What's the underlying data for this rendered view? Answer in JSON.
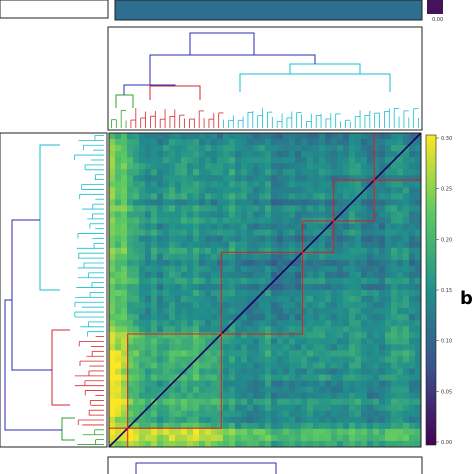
{
  "chart_data": {
    "type": "heatmap",
    "title": "",
    "xlabel": "",
    "ylabel": "",
    "panel_label": "b",
    "colormap": "viridis",
    "colorbar": {
      "min": 0.0,
      "max": 0.3,
      "ticks": [
        "0.30",
        "0.25",
        "0.20",
        "0.15",
        "0.10",
        "0.05",
        "0.00"
      ],
      "colors": [
        "#440154",
        "#3b528b",
        "#21908c",
        "#5dc963",
        "#fde725"
      ]
    },
    "top_colorbar_tick": "0.00",
    "clusters": [
      {
        "color": "#2ca02c",
        "row_fraction": [
          0.0,
          0.06
        ]
      },
      {
        "color": "#d62728",
        "row_fraction": [
          0.06,
          0.36
        ]
      },
      {
        "color": "#17becf",
        "row_fraction": [
          0.36,
          1.0
        ]
      }
    ],
    "dendrogram_link_color": "#2b2bb5",
    "diagonal_boxes": [
      [
        0.0,
        0.06
      ],
      [
        0.06,
        0.36
      ],
      [
        0.36,
        0.62
      ],
      [
        0.62,
        0.72
      ],
      [
        0.72,
        0.85
      ],
      [
        0.85,
        1.0
      ]
    ],
    "box_color": "#e31a1c",
    "diagonal_color": "#1a0066"
  }
}
